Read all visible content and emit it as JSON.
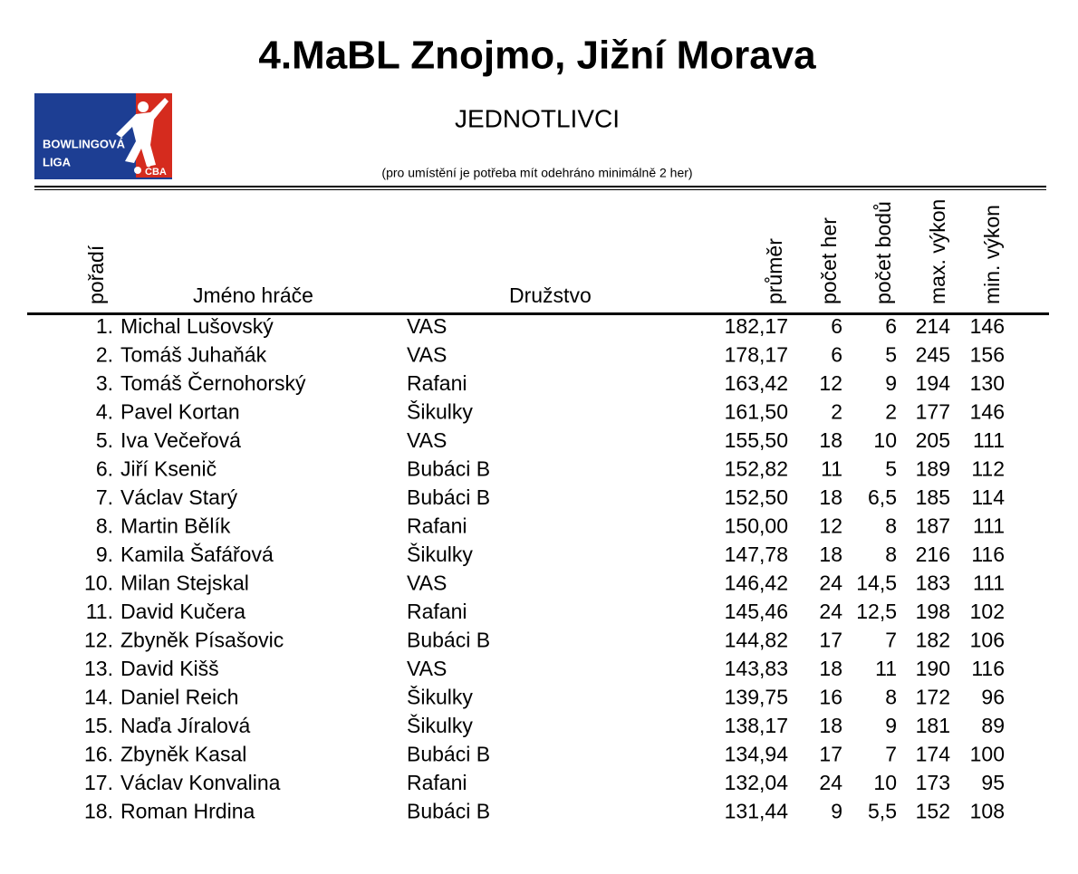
{
  "header": {
    "title": "4.MaBL Znojmo, Jižní Morava",
    "subtitle": "JEDNOTLIVCI",
    "note": "(pro umístění je potřeba mít odehráno minimálně 2 her)"
  },
  "logo": {
    "line1": "BOWLINGOVÁ",
    "line2": "LIGA",
    "badge": "ČBA"
  },
  "table": {
    "columns": [
      "pořadí",
      "Jméno hráče",
      "Družstvo",
      "průměr",
      "počet her",
      "počet bodů",
      "max. výkon",
      "min. výkon"
    ],
    "rows": [
      [
        "1.",
        "Michal Lušovský",
        "VAS",
        "182,17",
        "6",
        "6",
        "214",
        "146"
      ],
      [
        "2.",
        "Tomáš Juhaňák",
        "VAS",
        "178,17",
        "6",
        "5",
        "245",
        "156"
      ],
      [
        "3.",
        "Tomáš Černohorský",
        "Rafani",
        "163,42",
        "12",
        "9",
        "194",
        "130"
      ],
      [
        "4.",
        "Pavel Kortan",
        "Šikulky",
        "161,50",
        "2",
        "2",
        "177",
        "146"
      ],
      [
        "5.",
        "Iva Večeřová",
        "VAS",
        "155,50",
        "18",
        "10",
        "205",
        "111"
      ],
      [
        "6.",
        "Jiří Ksenič",
        "Bubáci B",
        "152,82",
        "11",
        "5",
        "189",
        "112"
      ],
      [
        "7.",
        "Václav Starý",
        "Bubáci B",
        "152,50",
        "18",
        "6,5",
        "185",
        "114"
      ],
      [
        "8.",
        "Martin Bělík",
        "Rafani",
        "150,00",
        "12",
        "8",
        "187",
        "111"
      ],
      [
        "9.",
        "Kamila Šafářová",
        "Šikulky",
        "147,78",
        "18",
        "8",
        "216",
        "116"
      ],
      [
        "10.",
        "Milan Stejskal",
        "VAS",
        "146,42",
        "24",
        "14,5",
        "183",
        "111"
      ],
      [
        "11.",
        "David Kučera",
        "Rafani",
        "145,46",
        "24",
        "12,5",
        "198",
        "102"
      ],
      [
        "12.",
        "Zbyněk Písašovic",
        "Bubáci B",
        "144,82",
        "17",
        "7",
        "182",
        "106"
      ],
      [
        "13.",
        "David Kišš",
        "VAS",
        "143,83",
        "18",
        "11",
        "190",
        "116"
      ],
      [
        "14.",
        "Daniel Reich",
        "Šikulky",
        "139,75",
        "16",
        "8",
        "172",
        "96"
      ],
      [
        "15.",
        "Naďa Jíralová",
        "Šikulky",
        "138,17",
        "18",
        "9",
        "181",
        "89"
      ],
      [
        "16.",
        "Zbyněk Kasal",
        "Bubáci B",
        "134,94",
        "17",
        "7",
        "174",
        "100"
      ],
      [
        "17.",
        "Václav Konvalina",
        "Rafani",
        "132,04",
        "24",
        "10",
        "173",
        "95"
      ],
      [
        "18.",
        "Roman Hrdina",
        "Bubáci B",
        "131,44",
        "9",
        "5,5",
        "152",
        "108"
      ]
    ]
  }
}
